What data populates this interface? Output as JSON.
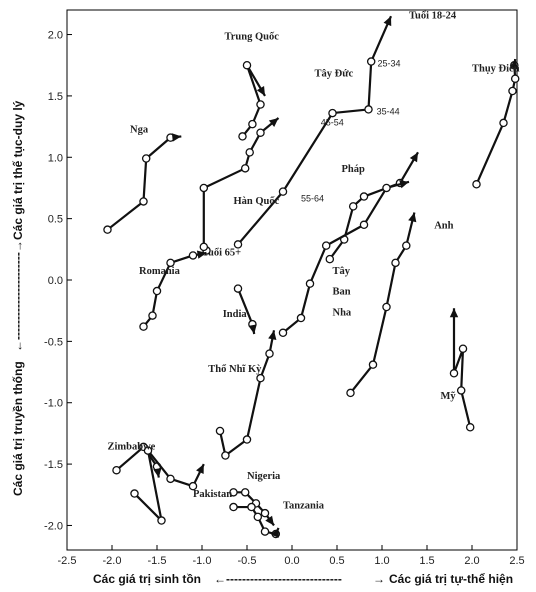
{
  "chart_data": {
    "type": "line",
    "xlim": [
      -2.5,
      2.5
    ],
    "ylim": [
      -2.2,
      2.2
    ],
    "xticks": [
      -2.5,
      -2.0,
      -1.5,
      -1.0,
      -0.5,
      0.0,
      0.5,
      1.0,
      1.5,
      2.0,
      2.5
    ],
    "yticks": [
      -2.0,
      -1.5,
      -1.0,
      -0.5,
      0.0,
      0.5,
      1.0,
      1.5,
      2.0
    ],
    "xtick_labels": [
      "-2.5",
      "-2.0",
      "-1.5",
      "-1.0",
      "-0.5",
      "0.0",
      "0.5",
      "1.0",
      "1.5",
      "2.0",
      "2.5"
    ],
    "ytick_labels": [
      "-2.0",
      "-1.5",
      "-1.0",
      "-0.5",
      "0.0",
      "0.5",
      "1.0",
      "1.5",
      "2.0"
    ],
    "xlabel_left": "Các giá trị sinh tồn",
    "xlabel_right": "Các giá trị tự-thể hiện",
    "ylabel_bottom": "Các giá trị truyền thống",
    "ylabel_top": "Các giá trị thế tục-duy lý",
    "grid": false,
    "series": [
      {
        "name": "Tây Đức",
        "points": [
          [
            -0.6,
            0.29
          ],
          [
            -0.1,
            0.72
          ],
          [
            0.45,
            1.36
          ],
          [
            0.85,
            1.39
          ],
          [
            0.88,
            1.78
          ],
          [
            1.1,
            2.15
          ]
        ],
        "point_labels": [
          "Tuổi 65+",
          "55-64",
          "45-54",
          "35-44",
          "25-34",
          "Tuổi 18-24"
        ],
        "label_points": [
          [
            -1.0,
            0.2
          ],
          [
            0.1,
            0.64
          ],
          [
            0.32,
            1.26
          ],
          [
            0.94,
            1.35
          ],
          [
            0.95,
            1.74
          ],
          [
            1.3,
            2.13
          ]
        ]
      },
      {
        "name": "Trung Quốc",
        "points": [
          [
            -0.55,
            1.17
          ],
          [
            -0.44,
            1.27
          ],
          [
            -0.35,
            1.43
          ],
          [
            -0.5,
            1.75
          ],
          [
            -0.3,
            1.5
          ]
        ]
      },
      {
        "name": "Nga",
        "points": [
          [
            -2.05,
            0.41
          ],
          [
            -1.65,
            0.64
          ],
          [
            -1.62,
            0.99
          ],
          [
            -1.35,
            1.16
          ],
          [
            -1.23,
            1.17
          ]
        ]
      },
      {
        "name": "Hàn Quốc",
        "points": [
          [
            -0.95,
            0.24
          ],
          [
            -0.98,
            0.27
          ],
          [
            -0.98,
            0.75
          ],
          [
            -0.52,
            0.91
          ],
          [
            -0.47,
            1.04
          ],
          [
            -0.35,
            1.2
          ],
          [
            -0.15,
            1.32
          ]
        ]
      },
      {
        "name": "Thụy Điển",
        "points": [
          [
            2.05,
            0.78
          ],
          [
            2.35,
            1.28
          ],
          [
            2.45,
            1.54
          ],
          [
            2.48,
            1.64
          ],
          [
            2.47,
            1.75
          ],
          [
            2.48,
            1.8
          ]
        ]
      },
      {
        "name": "Romania",
        "points": [
          [
            -1.65,
            -0.38
          ],
          [
            -1.55,
            -0.29
          ],
          [
            -1.5,
            -0.09
          ],
          [
            -1.35,
            0.14
          ],
          [
            -1.1,
            0.2
          ],
          [
            -0.95,
            0.22
          ]
        ]
      },
      {
        "name": "India",
        "points": [
          [
            -0.6,
            -0.07
          ],
          [
            -0.44,
            -0.36
          ],
          [
            -0.42,
            -0.44
          ]
        ]
      },
      {
        "name": "Pháp",
        "points": [
          [
            0.42,
            0.17
          ],
          [
            0.58,
            0.33
          ],
          [
            0.68,
            0.6
          ],
          [
            0.8,
            0.68
          ],
          [
            1.2,
            0.79
          ],
          [
            1.4,
            1.04
          ]
        ]
      },
      {
        "name": "Anh",
        "points": [
          [
            0.65,
            -0.92
          ],
          [
            0.9,
            -0.69
          ],
          [
            1.05,
            -0.22
          ],
          [
            1.15,
            0.14
          ],
          [
            1.27,
            0.28
          ],
          [
            1.36,
            0.55
          ]
        ]
      },
      {
        "name": "Tây Ban Nha",
        "points": [
          [
            -0.1,
            -0.43
          ],
          [
            0.1,
            -0.31
          ],
          [
            0.2,
            -0.03
          ],
          [
            0.38,
            0.28
          ],
          [
            0.8,
            0.45
          ],
          [
            1.05,
            0.75
          ],
          [
            1.3,
            0.8
          ]
        ]
      },
      {
        "name": "Mỹ",
        "points": [
          [
            1.98,
            -1.2
          ],
          [
            1.88,
            -0.9
          ],
          [
            1.9,
            -0.56
          ],
          [
            1.8,
            -0.76
          ],
          [
            1.8,
            -0.23
          ]
        ]
      },
      {
        "name": "Thổ Nhĩ Kỳ",
        "points": [
          [
            -0.8,
            -1.23
          ],
          [
            -0.74,
            -1.43
          ],
          [
            -0.5,
            -1.3
          ],
          [
            -0.35,
            -0.8
          ],
          [
            -0.25,
            -0.6
          ],
          [
            -0.2,
            -0.41
          ]
        ]
      },
      {
        "name": "Zimbabwe",
        "points": [
          [
            -1.95,
            -1.55
          ],
          [
            -1.65,
            -1.36
          ],
          [
            -1.5,
            -1.52
          ],
          [
            -1.48,
            -1.61
          ]
        ]
      },
      {
        "name": "Pakistan",
        "points": [
          [
            -1.75,
            -1.74
          ],
          [
            -1.45,
            -1.96
          ],
          [
            -1.6,
            -1.39
          ],
          [
            -1.35,
            -1.62
          ],
          [
            -1.1,
            -1.68
          ],
          [
            -0.98,
            -1.5
          ]
        ]
      },
      {
        "name": "Nigeria",
        "points": [
          [
            -0.65,
            -1.73
          ],
          [
            -0.52,
            -1.73
          ],
          [
            -0.4,
            -1.82
          ],
          [
            -0.3,
            -1.9
          ],
          [
            -0.2,
            -2.0
          ]
        ]
      },
      {
        "name": "Tanzania",
        "points": [
          [
            -0.65,
            -1.85
          ],
          [
            -0.45,
            -1.85
          ],
          [
            -0.38,
            -1.93
          ],
          [
            -0.3,
            -2.05
          ],
          [
            -0.18,
            -2.07
          ],
          [
            -0.15,
            -2.02
          ]
        ]
      }
    ],
    "labels": [
      {
        "text": "Trung Quốc",
        "x": -0.75,
        "y": 1.96
      },
      {
        "text": "Tây Đức",
        "x": 0.25,
        "y": 1.66
      },
      {
        "text": "Thụy Điển",
        "x": 2.0,
        "y": 1.7
      },
      {
        "text": "Nga",
        "x": -1.8,
        "y": 1.2
      },
      {
        "text": "Hàn Quốc",
        "x": -0.65,
        "y": 0.62
      },
      {
        "text": "Pháp",
        "x": 0.55,
        "y": 0.88
      },
      {
        "text": "Romania",
        "x": -1.7,
        "y": 0.05
      },
      {
        "text": "Tây",
        "x": 0.45,
        "y": 0.05
      },
      {
        "text": "Ban",
        "x": 0.45,
        "y": -0.12
      },
      {
        "text": "Nha",
        "x": 0.45,
        "y": -0.29
      },
      {
        "text": "Anh",
        "x": 1.58,
        "y": 0.42
      },
      {
        "text": "India",
        "x": -0.77,
        "y": -0.3
      },
      {
        "text": "Thổ Nhĩ Kỳ",
        "x": -0.93,
        "y": -0.75
      },
      {
        "text": "Mỹ",
        "x": 1.65,
        "y": -0.97
      },
      {
        "text": "Zimbabwe",
        "x": -2.05,
        "y": -1.38
      },
      {
        "text": "Nigeria",
        "x": -0.5,
        "y": -1.62
      },
      {
        "text": "Pakistan",
        "x": -1.1,
        "y": -1.77
      },
      {
        "text": "Tanzania",
        "x": -0.1,
        "y": -1.86
      }
    ]
  }
}
